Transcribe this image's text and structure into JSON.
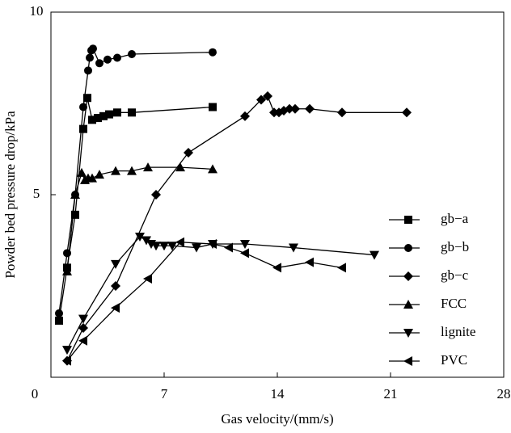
{
  "chart_data": {
    "type": "line",
    "x_label": "Gas velocity/(mm/s)",
    "y_label": "Powder bed pressure drop/kPa",
    "xlim": [
      0,
      28
    ],
    "xticks": [
      0,
      7,
      14,
      21,
      28
    ],
    "ylim": [
      0,
      10
    ],
    "yticks": [
      5,
      10
    ],
    "legend": "right",
    "series": [
      {
        "name": "gb−a",
        "color": "#000000",
        "marker": "square",
        "x": [
          0.5,
          1.0,
          1.5,
          2.0,
          2.25,
          2.55,
          2.9,
          3.25,
          3.6,
          4.1,
          5.0,
          10.0
        ],
        "values": [
          1.55,
          3.0,
          4.45,
          6.8,
          7.65,
          7.05,
          7.1,
          7.15,
          7.2,
          7.25,
          7.25,
          7.4
        ]
      },
      {
        "name": "gb−b",
        "color": "#000000",
        "marker": "circle",
        "x": [
          0.5,
          1.0,
          1.5,
          2.0,
          2.3,
          2.4,
          2.5,
          2.6,
          3.0,
          3.5,
          4.1,
          5.0,
          10.0
        ],
        "values": [
          1.75,
          3.4,
          5.0,
          7.4,
          8.4,
          8.75,
          8.95,
          9.0,
          8.6,
          8.7,
          8.75,
          8.85,
          8.9
        ]
      },
      {
        "name": "gb−c",
        "color": "#000000",
        "marker": "diamond",
        "x": [
          1.0,
          2.0,
          4.0,
          6.5,
          8.5,
          12.0,
          13.0,
          13.4,
          13.8,
          14.1,
          14.4,
          14.75,
          15.1,
          16.0,
          18.0,
          22.0
        ],
        "values": [
          0.45,
          1.35,
          2.5,
          5.0,
          6.15,
          7.15,
          7.6,
          7.7,
          7.25,
          7.25,
          7.3,
          7.35,
          7.35,
          7.35,
          7.25,
          7.25
        ]
      },
      {
        "name": "FCC",
        "color": "#000000",
        "marker": "triangle-up",
        "x": [
          1.0,
          1.5,
          1.9,
          2.1,
          2.3,
          2.55,
          3.0,
          4.0,
          5.0,
          6.0,
          8.0,
          10.0
        ],
        "values": [
          2.9,
          5.0,
          5.6,
          5.4,
          5.45,
          5.45,
          5.55,
          5.65,
          5.65,
          5.75,
          5.75,
          5.7
        ]
      },
      {
        "name": "lignite",
        "color": "#000000",
        "marker": "triangle-down",
        "x": [
          1.0,
          2.0,
          4.0,
          5.5,
          5.9,
          6.2,
          6.5,
          7.0,
          7.5,
          9.0,
          10.0,
          12.0,
          15.0,
          20.0
        ],
        "values": [
          0.75,
          1.6,
          3.1,
          3.85,
          3.75,
          3.65,
          3.6,
          3.6,
          3.6,
          3.55,
          3.65,
          3.65,
          3.55,
          3.35
        ]
      },
      {
        "name": "PVC",
        "color": "#000000",
        "marker": "triangle-left",
        "x": [
          1.0,
          2.0,
          4.0,
          6.0,
          8.0,
          10.0,
          11.0,
          12.0,
          14.0,
          16.0,
          18.0
        ],
        "values": [
          0.45,
          1.0,
          1.9,
          2.7,
          3.7,
          3.65,
          3.55,
          3.4,
          3.0,
          3.15,
          3.0
        ]
      }
    ]
  }
}
